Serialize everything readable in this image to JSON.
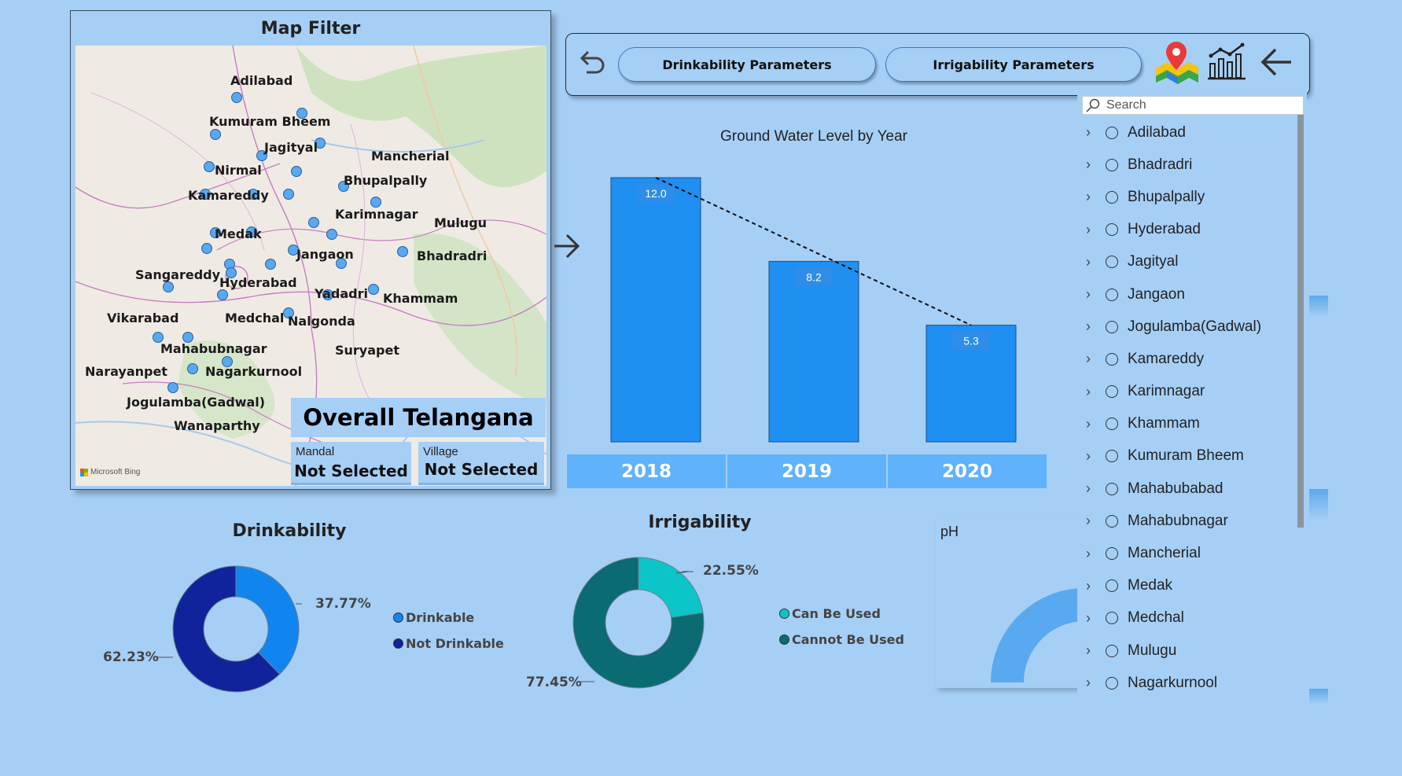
{
  "map": {
    "title": "Map Filter",
    "attribution": "Microsoft Bing",
    "districts": [
      {
        "name": "Adilabad"
      },
      {
        "name": "Kumuram Bheem"
      },
      {
        "name": "Jagityal"
      },
      {
        "name": "Mancherial"
      },
      {
        "name": "Nirmal"
      },
      {
        "name": "Bhupalpally"
      },
      {
        "name": "Kamareddy"
      },
      {
        "name": "Karimnagar"
      },
      {
        "name": "Mulugu"
      },
      {
        "name": "Medak"
      },
      {
        "name": "Jangaon"
      },
      {
        "name": "Bhadradri"
      },
      {
        "name": "Sangareddy"
      },
      {
        "name": "Hyderabad"
      },
      {
        "name": "Yadadri"
      },
      {
        "name": "Khammam"
      },
      {
        "name": "Vikarabad"
      },
      {
        "name": "Medchal"
      },
      {
        "name": "Nalgonda"
      },
      {
        "name": "Mahabubnagar"
      },
      {
        "name": "Suryapet"
      },
      {
        "name": "Narayanpet"
      },
      {
        "name": "Nagarkurnool"
      },
      {
        "name": "Jogulamba(Gadwal)"
      },
      {
        "name": "Wanaparthy"
      }
    ]
  },
  "overall": "Overall Telangana",
  "mandal": {
    "label": "Mandal",
    "value": "Not Selected"
  },
  "village": {
    "label": "Village",
    "value": "Not Selected"
  },
  "nav": {
    "drinkability_btn": "Drinkability Parameters",
    "irrigability_btn": "Irrigability Parameters",
    "icons": [
      "undo-icon",
      "map-pin-icon",
      "chart-icon",
      "back-arrow-icon"
    ]
  },
  "groundwater": {
    "title": "Ground Water Level by Year",
    "bar_color": "#1f8ff2"
  },
  "chart_data": [
    {
      "type": "bar",
      "title": "Ground Water Level by Year",
      "categories": [
        "2018",
        "2019",
        "2020"
      ],
      "values": [
        12.0,
        8.2,
        5.3
      ],
      "labels": [
        "12.0",
        "8.2",
        "5.3"
      ],
      "trendline": true,
      "ylim": [
        0,
        12
      ]
    },
    {
      "type": "pie",
      "title": "Drinkability",
      "categories": [
        "Drinkable",
        "Not Drinkable"
      ],
      "values": [
        37.77,
        62.23
      ],
      "labels": [
        "37.77%",
        "62.23%"
      ],
      "colors": [
        "#1185ef",
        "#10239a"
      ]
    },
    {
      "type": "pie",
      "title": "Irrigability",
      "categories": [
        "Can Be Used",
        "Cannot Be Used"
      ],
      "values": [
        22.55,
        77.45
      ],
      "labels": [
        "22.55%",
        "77.45%"
      ],
      "colors": [
        "#0cc5c8",
        "#0a6b72"
      ]
    }
  ],
  "drinkability": {
    "title": "Drinkability",
    "pct_drinkable": "37.77%",
    "pct_not": "62.23%",
    "legend": [
      "Drinkable",
      "Not Drinkable"
    ]
  },
  "irrigability": {
    "title": "Irrigability",
    "pct_can": "22.55%",
    "pct_cannot": "77.45%",
    "legend": [
      "Can Be Used",
      "Cannot Be Used"
    ]
  },
  "ph": {
    "label": "pH",
    "color": "#59a9f0"
  },
  "slicer": {
    "placeholder": "Search",
    "items": [
      "Adilabad",
      "Bhadradri",
      "Bhupalpally",
      "Hyderabad",
      "Jagityal",
      "Jangaon",
      "Jogulamba(Gadwal)",
      "Kamareddy",
      "Karimnagar",
      "Khammam",
      "Kumuram Bheem",
      "Mahabubabad",
      "Mahabubnagar",
      "Mancherial",
      "Medak",
      "Medchal",
      "Mulugu",
      "Nagarkurnool"
    ]
  }
}
